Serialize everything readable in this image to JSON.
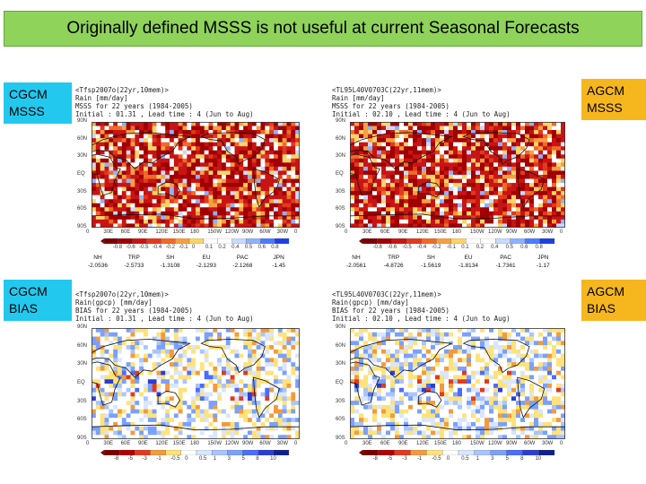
{
  "slide": {
    "title": "Originally defined MSSS is not useful at current Seasonal Forecasts"
  },
  "labels": {
    "cgcm_msss": [
      "CGCM",
      "MSSS"
    ],
    "agcm_msss": [
      "AGCM",
      "MSSS"
    ],
    "cgcm_bias": [
      "CGCM",
      "BIAS"
    ],
    "agcm_bias": [
      "AGCM",
      "BIAS"
    ]
  },
  "panels": {
    "tl": {
      "header": [
        "<Tfsp2007o(22yr,10mem)>",
        "Rain [mm/day]",
        "MSSS for 22 years (1984-2005)",
        "Initial : 01.31 , Lead time : 4 (Jun to Aug)"
      ],
      "colorbar": [
        "-0.8",
        "-0.6",
        "-0.5",
        "-0.4",
        "-0.2",
        "-0.1",
        "0",
        "0.1",
        "0.2",
        "0.4",
        "0.5",
        "0.6",
        "0.8"
      ],
      "scores_regions": [
        "NH",
        "TRP",
        "SH",
        "EU",
        "PAC",
        "JPN"
      ],
      "scores_values": [
        "-2.0536",
        "-2.5733",
        "-1.3108",
        "-2.1293",
        "-2.1268",
        "-1.45"
      ]
    },
    "tr": {
      "header": [
        "<TL95L40V0703C(22yr,11mem)>",
        "Rain [mm/day]",
        "MSSS for 22 years (1984-2005)",
        "Initial : 02.10 , Lead time : 4 (Jun to Aug)"
      ],
      "colorbar": [
        "-0.8",
        "-0.6",
        "-0.5",
        "-0.4",
        "-0.2",
        "-0.1",
        "0.1",
        "0.2",
        "0.4",
        "0.5",
        "0.6",
        "0.8"
      ],
      "scores_regions": [
        "NH",
        "TRP",
        "SH",
        "EU",
        "PAC",
        "JPN"
      ],
      "scores_values": [
        "-2.0561",
        "-4.8726",
        "-1.5619",
        "-1.8134",
        "-1.7361",
        "-1.17"
      ]
    },
    "bl": {
      "header": [
        "<Tfsp2007o(22yr,10mem)>",
        "Rain(gpcp) [mm/day]",
        "BIAS for 22 years (1984-2005)",
        "Initial : 01.31 , Lead time : 4 (Jun to Aug)"
      ],
      "colorbar": [
        "-8",
        "-5",
        "-3",
        "-1",
        "-0.5",
        "0",
        "0.5",
        "1",
        "3",
        "5",
        "8",
        "10"
      ]
    },
    "br": {
      "header": [
        "<TL95L40V0703C(22yr,11mem)>",
        "Rain(gpcp) [mm/day]",
        "BIAS for 22 years (1984-2005)",
        "Initial : 02.10 , Lead time : 4 (Jun to Aug)"
      ],
      "colorbar": [
        "-8",
        "-5",
        "-3",
        "-1",
        "-0.5",
        "0",
        "0.5",
        "1",
        "3",
        "5",
        "8",
        "10"
      ]
    }
  },
  "axes": {
    "lat": [
      "90N",
      "60N",
      "30N",
      "EQ",
      "30S",
      "60S",
      "90S"
    ],
    "lon": [
      "0",
      "30E",
      "60E",
      "90E",
      "120E",
      "150E",
      "180",
      "150W",
      "120W",
      "90W",
      "60W",
      "30W",
      "0"
    ]
  },
  "colors": {
    "title_bg": "#8fd35b",
    "cgcm_tag": "#22c8ee",
    "agcm_tag": "#f6b61e"
  }
}
